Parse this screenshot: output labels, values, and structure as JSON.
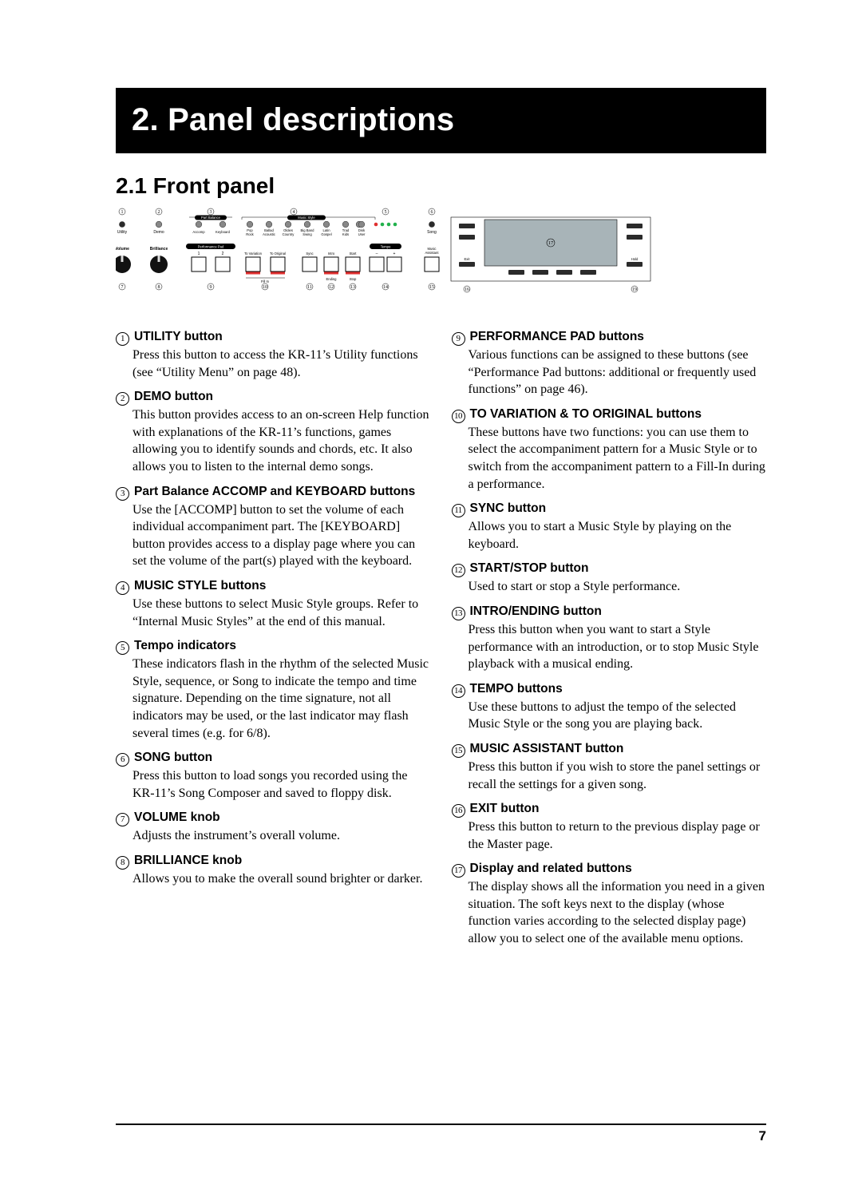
{
  "chapter_title": "2. Panel descriptions",
  "section_title": "2.1 Front panel",
  "page_number": "7",
  "diagram": {
    "top_numbers_left": [
      "1",
      "2",
      "3",
      "4",
      "5",
      "6"
    ],
    "bottom_numbers": [
      "7",
      "8",
      "9",
      "10",
      "11",
      "12",
      "13",
      "14",
      "15",
      "16",
      "19"
    ],
    "display_number": "17",
    "labels": {
      "utility": "Utility",
      "demo": "Demo",
      "part_balance": "Part Balance",
      "accomp": "Accomp",
      "keyboard": "Keyboard",
      "music_style": "Music Style",
      "ms_groups": [
        "Pop\nRock",
        "Ballad\nAcoustic",
        "Oldies\nCountry",
        "Big Band\nSwing",
        "Latin\nGospel",
        "Trad\nKids"
      ],
      "disk_user": "Disk\nUser",
      "song": "Song",
      "volume": "Volume",
      "brilliance": "Brilliance",
      "performance_pad": "Performance Pad",
      "pp_1": "1",
      "pp_2": "2",
      "to_variation": "To Variation",
      "to_original": "To Original",
      "fill_in": "Fill In",
      "sync": "Sync",
      "intro": "Intro\nEnding",
      "start": "Start\nStop",
      "tempo": "Tempo",
      "tempo_minus": "–",
      "tempo_plus": "+",
      "music_assistant": "Music\nAssistant",
      "exit": "Exit",
      "hold": "Hold"
    },
    "colors": {
      "panel_stroke": "#000000",
      "led_green": "#22b14c",
      "led_red": "#e03030",
      "display_fill": "#a8b4b8",
      "knob_fill": "#111111",
      "btn_fill": "#c9c9c9"
    }
  },
  "left_items": [
    {
      "n": "1",
      "title": "UTILITY button",
      "body": "Press this button to access the KR-11’s Utility functions (see “Utility Menu” on page 48)."
    },
    {
      "n": "2",
      "title": "DEMO button",
      "body": "This button provides access to an on-screen Help function with explanations of the KR-11’s functions, games allowing you to identify sounds and chords, etc. It also allows you to listen to the internal demo songs."
    },
    {
      "n": "3",
      "title": "Part Balance ACCOMP and KEYBOARD buttons",
      "body": "Use the [ACCOMP] button to set the volume of each individual accompaniment part. The [KEYBOARD] button provides access to a display page where you can set the volume of the part(s) played with the keyboard."
    },
    {
      "n": "4",
      "title": "MUSIC STYLE buttons",
      "body": "Use these buttons to select Music Style groups. Refer to  “Internal Music Styles” at the end of this manual."
    },
    {
      "n": "5",
      "title": "Tempo indicators",
      "body": "These indicators flash in the rhythm of the selected Music Style, sequence, or Song to indicate the tempo and time signature. Depending on the time signature, not all indicators may be used, or the last indicator may flash several times (e.g. for 6/8)."
    },
    {
      "n": "6",
      "title": "SONG button",
      "body": "Press this button to load songs you recorded using the KR-11’s Song Composer and saved to floppy disk."
    },
    {
      "n": "7",
      "title": "VOLUME knob",
      "body": "Adjusts the instrument’s overall volume."
    },
    {
      "n": "8",
      "title": "BRILLIANCE knob",
      "body": "Allows you to make the overall sound brighter or darker."
    }
  ],
  "right_items": [
    {
      "n": "9",
      "title": "PERFORMANCE PAD buttons",
      "body": "Various functions can be assigned to these buttons (see “Performance Pad buttons: additional or frequently used functions” on page 46)."
    },
    {
      "n": "10",
      "title": "TO VARIATION & TO ORIGINAL buttons",
      "body": "These buttons have two functions: you can use them to select the accompaniment pattern for a Music Style or to switch from the accompaniment pattern to a Fill-In during a performance."
    },
    {
      "n": "11",
      "title": "SYNC button",
      "body": "Allows you to start a Music Style by playing on the keyboard."
    },
    {
      "n": "12",
      "title": "START/STOP button",
      "body": "Used to start or stop a Style performance."
    },
    {
      "n": "13",
      "title": "INTRO/ENDING button",
      "body": "Press this button when you want to start a Style performance with an introduction, or to stop Music Style playback with a musical ending."
    },
    {
      "n": "14",
      "title": "TEMPO buttons",
      "body": "Use these buttons to adjust the tempo of the selected Music Style or the song you are playing back."
    },
    {
      "n": "15",
      "title": "MUSIC ASSISTANT button",
      "body": "Press this button if you wish to store the panel settings or recall the settings for a given song."
    },
    {
      "n": "16",
      "title": "EXIT button",
      "body": "Press this button to return to the previous display page or the Master page."
    },
    {
      "n": "17",
      "title": "Display and related buttons",
      "body": "The display shows all the information you need in a given situation. The soft keys next to the display (whose function varies according to the selected display page) allow you to select one of the available menu options."
    }
  ]
}
